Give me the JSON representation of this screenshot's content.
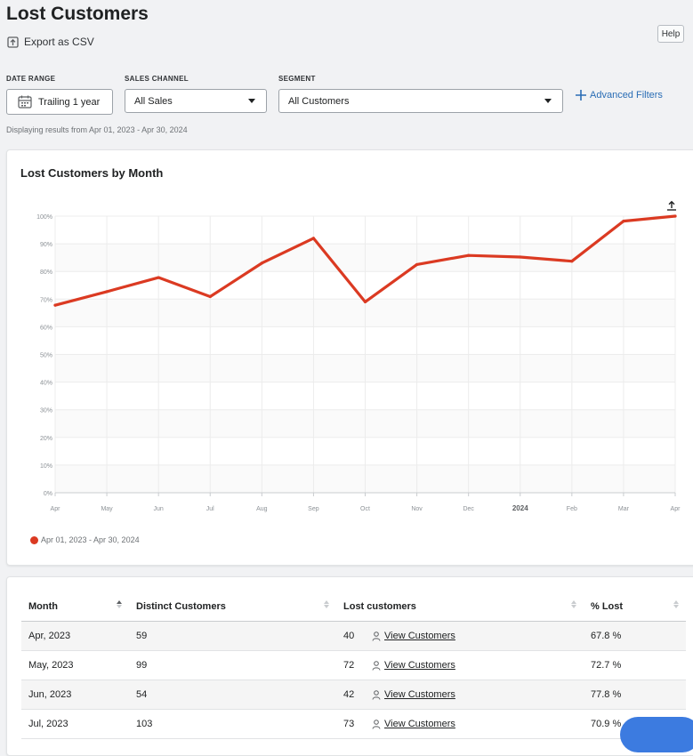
{
  "page": {
    "title": "Lost Customers",
    "export_label": "Export as CSV",
    "help_label": "Help"
  },
  "filters": {
    "date_range": {
      "label": "DATE RANGE",
      "value": "Trailing 1 year"
    },
    "sales_channel": {
      "label": "SALES CHANNEL",
      "value": "All Sales"
    },
    "segment": {
      "label": "SEGMENT",
      "value": "All Customers"
    },
    "advanced_label": "Advanced Filters",
    "range_note": "Displaying results from Apr 01, 2023 - Apr 30, 2024"
  },
  "chart": {
    "title": "Lost Customers by Month",
    "legend_label": "Apr 01, 2023 - Apr 30, 2024",
    "series_color": "#db3a22"
  },
  "chart_data": {
    "type": "line",
    "title": "Lost Customers by Month",
    "x": [
      "Apr",
      "May",
      "Jun",
      "Jul",
      "Aug",
      "Sep",
      "Oct",
      "Nov",
      "Dec",
      "2024",
      "Feb",
      "Mar",
      "Apr"
    ],
    "bold_ticks": [
      "2024"
    ],
    "series": [
      {
        "name": "Apr 01, 2023 - Apr 30, 2024",
        "color": "#db3a22",
        "values": [
          67.8,
          72.7,
          77.8,
          70.9,
          83.0,
          92.0,
          69.0,
          82.5,
          85.8,
          85.2,
          83.7,
          98.2,
          100.0
        ]
      }
    ],
    "ylim": [
      0,
      100
    ],
    "yticks": [
      "0%",
      "10%",
      "20%",
      "30%",
      "40%",
      "50%",
      "60%",
      "70%",
      "80%",
      "90%",
      "100%"
    ],
    "grid": true,
    "legend_position": "bottom-left"
  },
  "table": {
    "columns": [
      "Month",
      "Distinct Customers",
      "Lost customers",
      "% Lost"
    ],
    "view_label": "View Customers",
    "rows": [
      {
        "month": "Apr, 2023",
        "distinct": "59",
        "lost": "40",
        "pct": "67.8 %"
      },
      {
        "month": "May, 2023",
        "distinct": "99",
        "lost": "72",
        "pct": "72.7 %"
      },
      {
        "month": "Jun, 2023",
        "distinct": "54",
        "lost": "42",
        "pct": "77.8 %"
      },
      {
        "month": "Jul, 2023",
        "distinct": "103",
        "lost": "73",
        "pct": "70.9 %"
      }
    ]
  }
}
